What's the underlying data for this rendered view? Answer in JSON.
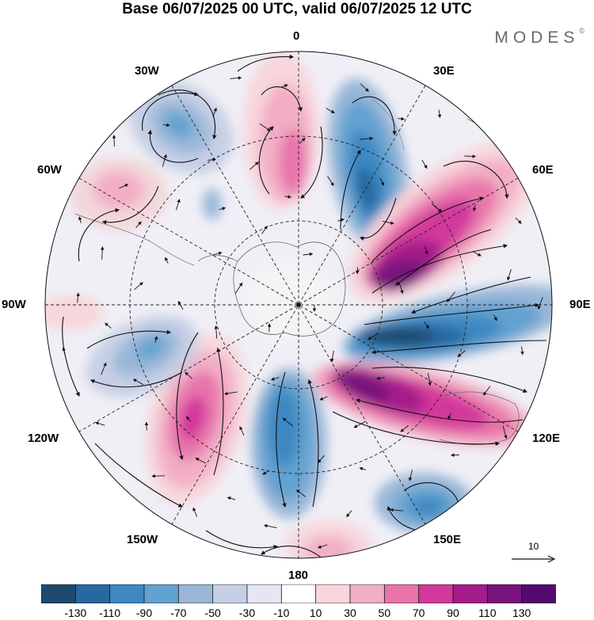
{
  "header": {
    "title": "Base 06/07/2025 00 UTC, valid 06/07/2025 12 UTC",
    "brand": "MODES",
    "brand_mark": "©"
  },
  "map": {
    "projection": "south-polar-stereographic",
    "longitude_labels": [
      {
        "id": "0",
        "text": "0"
      },
      {
        "id": "30e",
        "text": "30E"
      },
      {
        "id": "60e",
        "text": "60E"
      },
      {
        "id": "90e",
        "text": "90E"
      },
      {
        "id": "120e",
        "text": "120E"
      },
      {
        "id": "150e",
        "text": "150E"
      },
      {
        "id": "180",
        "text": "180"
      },
      {
        "id": "150w",
        "text": "150W"
      },
      {
        "id": "120w",
        "text": "120W"
      },
      {
        "id": "90w",
        "text": "90W"
      },
      {
        "id": "60w",
        "text": "60W"
      },
      {
        "id": "30w",
        "text": "30W"
      }
    ],
    "reference_vector": {
      "label": "10"
    }
  },
  "colorbar": {
    "labels": [
      "-130",
      "-110",
      "-90",
      "-70",
      "-50",
      "-30",
      "-10",
      "10",
      "30",
      "50",
      "70",
      "90",
      "110",
      "130"
    ],
    "colors": [
      "#1d4a6e",
      "#2868a0",
      "#3d88c2",
      "#62a2d0",
      "#9ab7d8",
      "#c6cfe5",
      "#e5e6f1",
      "#ffffff",
      "#f7d6dc",
      "#f2aec5",
      "#e874ab",
      "#d2399a",
      "#a41b8a",
      "#77137c",
      "#54096f"
    ]
  }
}
